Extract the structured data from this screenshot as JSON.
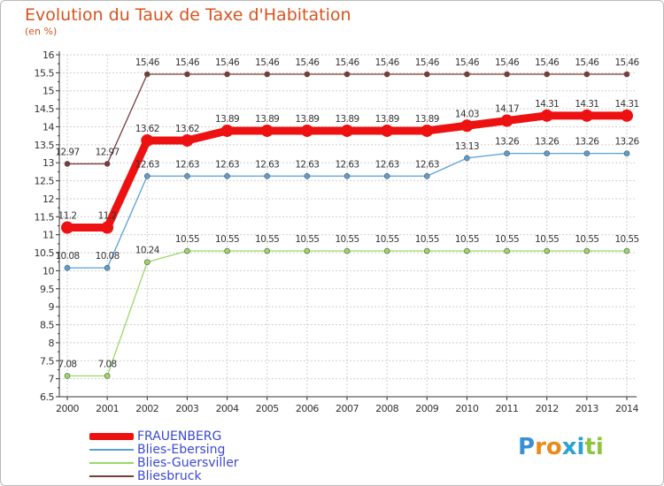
{
  "header": {
    "title": "Evolution du Taux de Taxe d'Habitation",
    "subtitle": "(en %)"
  },
  "chart_data": {
    "type": "line",
    "title": "Evolution du Taux de Taxe d'Habitation",
    "ylabel": "(en %)",
    "xlabel": "",
    "ylim": [
      6.5,
      16
    ],
    "yticks": [
      "6.5",
      "7",
      "7.5",
      "8",
      "8.5",
      "9",
      "9.5",
      "10",
      "10.5",
      "11",
      "11.5",
      "12",
      "12.5",
      "13",
      "13.5",
      "14",
      "14.5",
      "15",
      "15.5",
      "16"
    ],
    "categories": [
      "2000",
      "2001",
      "2002",
      "2003",
      "2004",
      "2005",
      "2006",
      "2007",
      "2008",
      "2009",
      "2010",
      "2011",
      "2012",
      "2013",
      "2014"
    ],
    "grid": true,
    "series": [
      {
        "name": "FRAUENBERG",
        "color": "#ee1111",
        "values": [
          11.2,
          11.2,
          13.62,
          13.62,
          13.89,
          13.89,
          13.89,
          13.89,
          13.89,
          13.89,
          14.03,
          14.17,
          14.31,
          14.31,
          14.31
        ],
        "labels": [
          "11.2",
          "11.2",
          "13.62",
          "13.62",
          "13.89",
          "13.89",
          "13.89",
          "13.89",
          "13.89",
          "13.89",
          "14.03",
          "14.17",
          "14.31",
          "14.31",
          "14.31"
        ]
      },
      {
        "name": "Blies-Ebersing",
        "color": "#5a9fd4",
        "values": [
          10.08,
          10.08,
          12.63,
          12.63,
          12.63,
          12.63,
          12.63,
          12.63,
          12.63,
          12.63,
          13.13,
          13.26,
          13.26,
          13.26,
          13.26
        ],
        "labels": [
          "10.08",
          "10.08",
          "12.63",
          "12.63",
          "12.63",
          "12.63",
          "12.63",
          "12.63",
          "12.63",
          "12.63",
          "13.13",
          "13.26",
          "13.26",
          "13.26",
          "13.26"
        ]
      },
      {
        "name": "Blies-Guersviller",
        "color": "#99d966",
        "values": [
          7.08,
          7.08,
          10.24,
          10.55,
          10.55,
          10.55,
          10.55,
          10.55,
          10.55,
          10.55,
          10.55,
          10.55,
          10.55,
          10.55,
          10.55
        ],
        "labels": [
          "7.08",
          "7.08",
          "10.24",
          "10.55",
          "10.55",
          "10.55",
          "10.55",
          "10.55",
          "10.55",
          "10.55",
          "10.55",
          "10.55",
          "10.55",
          "10.55",
          "10.55"
        ]
      },
      {
        "name": "Bliesbruck",
        "color": "#7a3b3b",
        "values": [
          12.97,
          12.97,
          15.46,
          15.46,
          15.46,
          15.46,
          15.46,
          15.46,
          15.46,
          15.46,
          15.46,
          15.46,
          15.46,
          15.46,
          15.46
        ],
        "labels": [
          "12.97",
          "12.97",
          "15.46",
          "15.46",
          "15.46",
          "15.46",
          "15.46",
          "15.46",
          "15.46",
          "15.46",
          "15.46",
          "15.46",
          "15.46",
          "15.46",
          "15.46"
        ]
      }
    ]
  },
  "legend": {
    "items": [
      {
        "label": "FRAUENBERG",
        "color": "#ee1111"
      },
      {
        "label": "Blies-Ebersing",
        "color": "#5a9fd4"
      },
      {
        "label": "Blies-Guersviller",
        "color": "#99d966"
      },
      {
        "label": "Bliesbruck",
        "color": "#7a3b3b"
      }
    ]
  },
  "logo": {
    "letters": [
      "P",
      "r",
      "o",
      "x",
      "i",
      "t",
      "i"
    ],
    "colors": [
      "#3a8fd6",
      "#e98a1a",
      "#e98a1a",
      "#2aa2d6",
      "#2aa2d6",
      "#8cc63f",
      "#8cc63f"
    ]
  }
}
